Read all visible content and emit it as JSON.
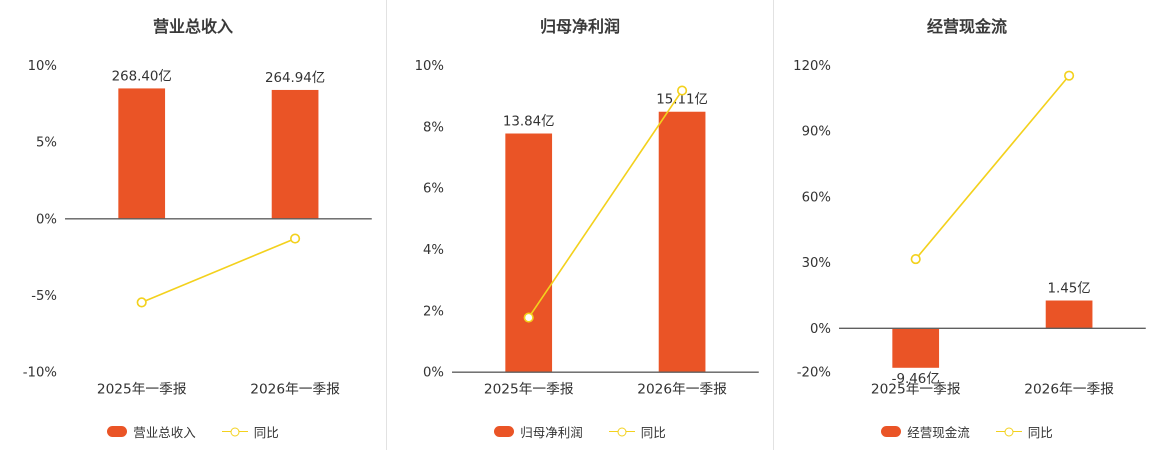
{
  "colors": {
    "bar": "#ea5426",
    "line": "#f3d11d",
    "axis_line": "#5f5f5f",
    "label_text": "#333333",
    "tick_text": "#333333",
    "title_text": "#3a3a3a",
    "divider": "#e2e2e2",
    "background": "#ffffff"
  },
  "chart_data": [
    {
      "type": "bar+line",
      "title": "营业总收入",
      "categories": [
        "2025年一季报",
        "2026年一季报"
      ],
      "bar_series": {
        "name": "营业总收入",
        "values_yi": [
          268.4,
          264.94
        ],
        "value_labels": [
          "268.40亿",
          "264.94亿"
        ],
        "plotted_height_pct": [
          8.5,
          8.4
        ]
      },
      "line_series": {
        "name": "同比",
        "values_pct": [
          -5.45,
          -1.29
        ]
      },
      "y_axis": {
        "min": -10,
        "max": 10,
        "tick_values": [
          10,
          5,
          0,
          -5,
          -10
        ],
        "tick_labels": [
          "10%",
          "5%",
          "0%",
          "-5%",
          "-10%"
        ]
      },
      "legend": {
        "bar_label": "营业总收入",
        "line_label": "同比"
      }
    },
    {
      "type": "bar+line",
      "title": "归母净利润",
      "categories": [
        "2025年一季报",
        "2026年一季报"
      ],
      "bar_series": {
        "name": "归母净利润",
        "values_yi": [
          13.84,
          15.11
        ],
        "value_labels": [
          "13.84亿",
          "15.11亿"
        ],
        "plotted_height_pct": [
          7.78,
          8.49
        ]
      },
      "line_series": {
        "name": "同比",
        "values_pct": [
          1.78,
          9.18
        ]
      },
      "y_axis": {
        "min": 0,
        "max": 10,
        "tick_values": [
          10,
          8,
          6,
          4,
          2,
          0
        ],
        "tick_labels": [
          "10%",
          "8%",
          "6%",
          "4%",
          "2%",
          "0%"
        ]
      },
      "legend": {
        "bar_label": "归母净利润",
        "line_label": "同比"
      }
    },
    {
      "type": "bar+line",
      "title": "经营现金流",
      "categories": [
        "2025年一季报",
        "2026年一季报"
      ],
      "bar_series": {
        "name": "经营现金流",
        "values_yi": [
          -9.46,
          1.45
        ],
        "value_labels": [
          "-9.46亿",
          "1.45亿"
        ],
        "plotted_height_pct": [
          -18.0,
          12.7
        ]
      },
      "line_series": {
        "name": "同比",
        "values_pct": [
          31.6,
          115.33
        ]
      },
      "y_axis": {
        "min": -20,
        "max": 120,
        "tick_values": [
          120,
          90,
          60,
          30,
          0,
          -20
        ],
        "tick_labels": [
          "120%",
          "90%",
          "60%",
          "30%",
          "0%",
          "-20%"
        ]
      },
      "legend": {
        "bar_label": "经营现金流",
        "line_label": "同比"
      }
    }
  ]
}
